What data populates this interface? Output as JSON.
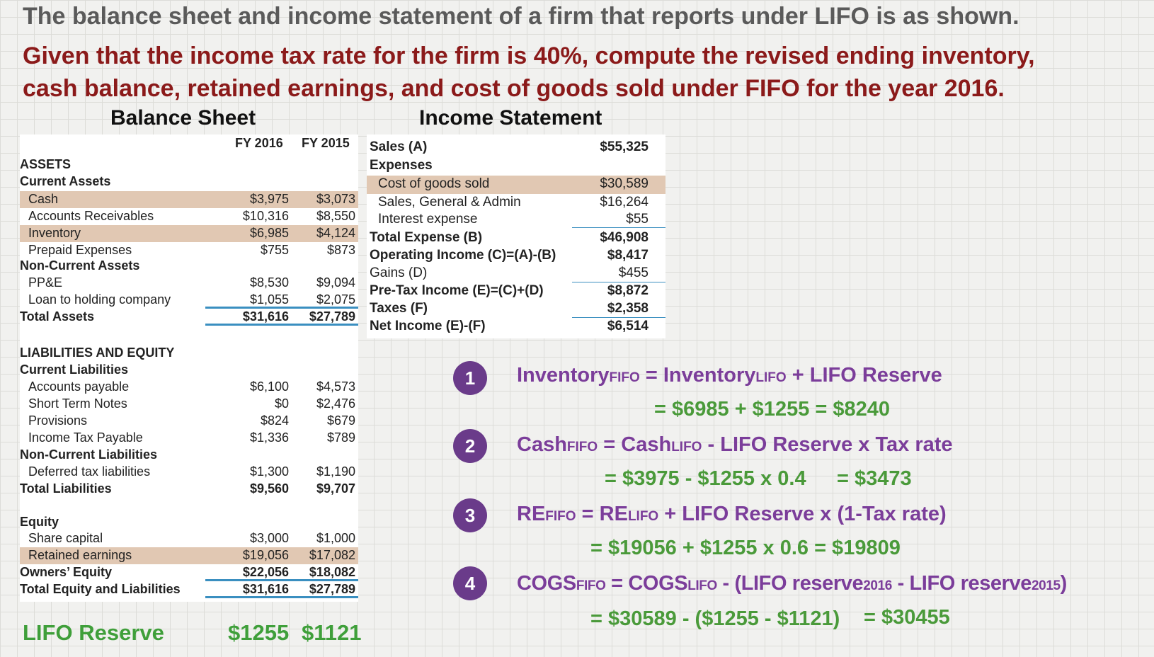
{
  "header": {
    "line1": "The balance sheet and income statement of a firm that reports under LIFO is as shown.",
    "line2": "Given that the income tax rate for the firm is 40%, compute the revised ending inventory,",
    "line3": "cash balance, retained earnings, and cost of goods sold under FIFO for the year 2016."
  },
  "balance_sheet": {
    "title": "Balance Sheet",
    "col1": "FY 2016",
    "col2": "FY 2015",
    "assets_heading": "ASSETS",
    "current_assets": "Current Assets",
    "cash": [
      "Cash",
      "$3,975",
      "$3,073"
    ],
    "ar": [
      "Accounts Receivables",
      "$10,316",
      "$8,550"
    ],
    "inventory": [
      "Inventory",
      "$6,985",
      "$4,124"
    ],
    "prepaid": [
      "Prepaid Expenses",
      "$755",
      "$873"
    ],
    "noncurrent_assets": "Non-Current Assets",
    "ppe": [
      "PP&E",
      "$8,530",
      "$9,094"
    ],
    "loan": [
      "Loan to holding company",
      "$1,055",
      "$2,075"
    ],
    "total_assets": [
      "Total Assets",
      "$31,616",
      "$27,789"
    ],
    "le_heading": "LIABILITIES AND EQUITY",
    "current_liabilities": "Current Liabilities",
    "ap": [
      "Accounts payable",
      "$6,100",
      "$4,573"
    ],
    "stn": [
      "Short Term Notes",
      "$0",
      "$2,476"
    ],
    "provisions": [
      "Provisions",
      "$824",
      "$679"
    ],
    "itp": [
      "Income Tax Payable",
      "$1,336",
      "$789"
    ],
    "noncurrent_liabilities": "Non-Current Liabilities",
    "dtl": [
      "Deferred tax liabilities",
      "$1,300",
      "$1,190"
    ],
    "total_liabilities": [
      "Total Liabilities",
      "$9,560",
      "$9,707"
    ],
    "equity": "Equity",
    "share_capital": [
      "Share capital",
      "$3,000",
      "$1,000"
    ],
    "retained": [
      "Retained earnings",
      "$19,056",
      "$17,082"
    ],
    "owners_equity": [
      "Owners’ Equity",
      "$22,056",
      "$18,082"
    ],
    "total_eq_liab": [
      "Total Equity and Liabilities",
      "$31,616",
      "$27,789"
    ]
  },
  "income_statement": {
    "title": "Income Statement",
    "sales": [
      "Sales (A)",
      "$55,325"
    ],
    "expenses": "Expenses",
    "cogs": [
      "Cost of goods sold",
      "$30,589"
    ],
    "sga": [
      "Sales, General & Admin",
      "$16,264"
    ],
    "interest": [
      "Interest expense",
      "$55"
    ],
    "total_expense": [
      "Total Expense (B)",
      "$46,908"
    ],
    "operating_income": [
      "Operating Income (C)=(A)-(B)",
      "$8,417"
    ],
    "gains": [
      "Gains (D)",
      "$455"
    ],
    "pretax": [
      "Pre-Tax Income (E)=(C)+(D)",
      "$8,872"
    ],
    "taxes": [
      "Taxes (F)",
      "$2,358"
    ],
    "net_income": [
      "Net Income (E)-(F)",
      "$6,514"
    ]
  },
  "lifo_reserve": {
    "label": "LIFO Reserve",
    "v2016": "$1255",
    "v2015": "$1121"
  },
  "formulas": {
    "n1": "1",
    "n2": "2",
    "n3": "3",
    "n4": "4",
    "inventory": "Inventory",
    "cash": "Cash",
    "re": "RE",
    "cogs": "COGS",
    "fifo": "FIFO",
    "lifo": "LIFO",
    "eq": "=",
    "f1_tail": "+ LIFO Reserve",
    "f1_result": "= $6985 + $1255 = $8240",
    "f2_tail": "- LIFO Reserve x Tax rate",
    "f2_result_a": "= $3975 - $1255 x 0.4",
    "f2_result_b": "= $3473",
    "f3_tail": "+ LIFO Reserve x (1-Tax rate)",
    "f3_result": "= $19056 + $1255 x 0.6 = $19809",
    "f4_mid": "- (LIFO reserve",
    "f4_y1": "2016",
    "f4_mid2": "- LIFO reserve",
    "f4_y2": "2015",
    "f4_close": ")",
    "f4_result_a": "= $30589 - ($1255 - $1121)",
    "f4_result_b": "= $30455"
  }
}
